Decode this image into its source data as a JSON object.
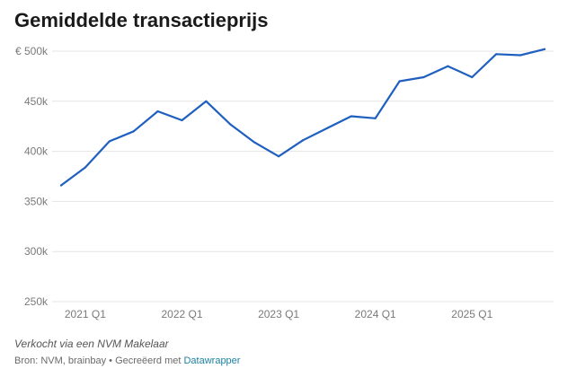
{
  "title": "Gemiddelde transactieprijs",
  "note": "Verkocht via een NVM Makelaar",
  "source": {
    "text": "Bron: NVM, brainbay • Gecreëerd met ",
    "link": "Datawrapper"
  },
  "colors": {
    "line": "#1f5fbf",
    "grid": "#e4e4e4",
    "link": "#1d81a2"
  },
  "chart_data": {
    "type": "line",
    "title": "Gemiddelde transactieprijs",
    "xlabel": "",
    "ylabel": "",
    "ylim": [
      250000,
      500000
    ],
    "y_ticks": [
      250000,
      300000,
      350000,
      400000,
      450000,
      500000
    ],
    "y_tick_labels": [
      "250k",
      "300k",
      "350k",
      "400k",
      "450k",
      "€ 500k"
    ],
    "x_ticks": [
      "2021 Q1",
      "2022 Q1",
      "2023 Q1",
      "2024 Q1",
      "2025 Q1"
    ],
    "x": [
      "2020 Q4",
      "2021 Q1",
      "2021 Q2",
      "2021 Q3",
      "2021 Q4",
      "2022 Q1",
      "2022 Q2",
      "2022 Q3",
      "2022 Q4",
      "2023 Q1",
      "2023 Q2",
      "2023 Q3",
      "2023 Q4",
      "2024 Q1",
      "2024 Q2",
      "2024 Q3",
      "2024 Q4",
      "2025 Q1",
      "2025 Q2",
      "2025 Q3",
      "2025 Q4"
    ],
    "series": [
      {
        "values": [
          366000,
          384000,
          410000,
          420000,
          440000,
          431000,
          450000,
          427000,
          409000,
          395000,
          411000,
          423000,
          435000,
          433000,
          470000,
          474000,
          485000,
          474000,
          497000,
          496000,
          502000
        ]
      }
    ],
    "grid": true,
    "legend": "none"
  }
}
